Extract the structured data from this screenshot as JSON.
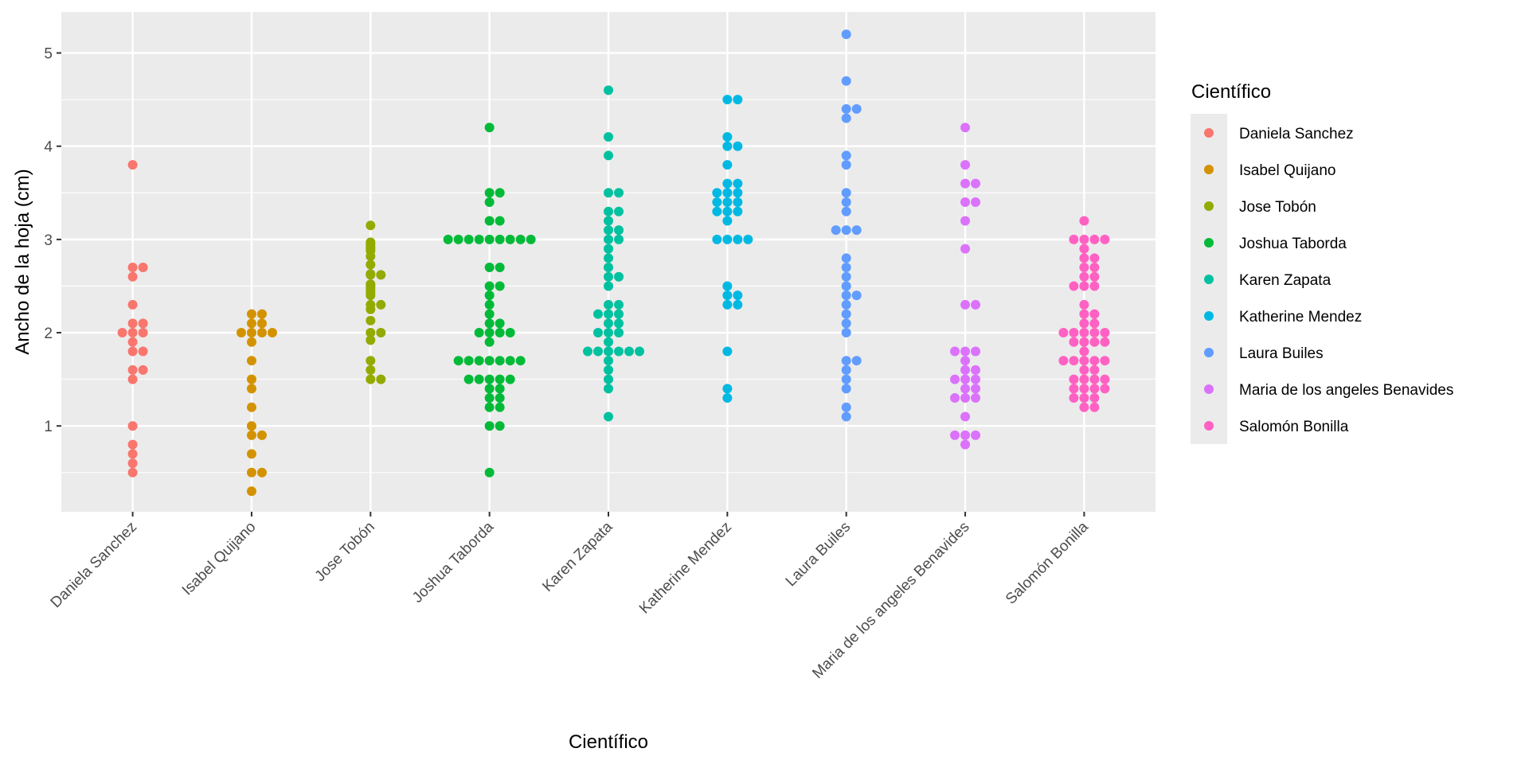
{
  "chart_data": {
    "type": "scatter",
    "subtype": "dotplot",
    "title": "",
    "xlabel": "Científico",
    "ylabel": "Ancho de la hoja (cm)",
    "ylim": [
      0.08,
      5.44
    ],
    "yticks": [
      1,
      2,
      3,
      4,
      5
    ],
    "grid": true,
    "legend_position": "right",
    "legend_title": "Científico",
    "categories": [
      "Daniela Sanchez",
      "Isabel Quijano",
      "Jose Tobón",
      "Joshua Taborda",
      "Karen Zapata",
      "Katherine Mendez",
      "Laura Builes",
      "Maria de los angeles Benavides",
      "Salomón  Bonilla"
    ],
    "series": [
      {
        "name": "Daniela Sanchez",
        "color": "#F8766D",
        "values": [
          3.8,
          2.7,
          2.7,
          2.6,
          2.3,
          2.1,
          2.1,
          2.0,
          2.0,
          2.0,
          1.9,
          1.8,
          1.8,
          1.6,
          1.6,
          1.5,
          1.0,
          0.8,
          0.7,
          0.6,
          0.5
        ]
      },
      {
        "name": "Isabel Quijano",
        "color": "#D39200",
        "values": [
          2.2,
          2.2,
          2.1,
          2.1,
          2.0,
          2.0,
          2.0,
          2.0,
          1.9,
          1.7,
          1.5,
          1.4,
          1.2,
          1.0,
          0.9,
          0.9,
          0.7,
          0.5,
          0.5,
          0.3
        ]
      },
      {
        "name": "Jose Tobón",
        "color": "#93AA00",
        "values": [
          3.15,
          2.97,
          2.95,
          2.92,
          2.9,
          2.88,
          2.82,
          2.73,
          2.63,
          2.62,
          2.62,
          2.52,
          2.5,
          2.48,
          2.45,
          2.43,
          2.4,
          2.3,
          2.3,
          2.25,
          2.13,
          2.0,
          2.0,
          1.92,
          1.7,
          1.6,
          1.5,
          1.5
        ]
      },
      {
        "name": "Joshua Taborda",
        "color": "#00BA38",
        "values": [
          4.2,
          3.5,
          3.5,
          3.4,
          3.2,
          3.2,
          3.0,
          3.0,
          3.0,
          3.0,
          3.0,
          3.0,
          3.0,
          3.0,
          3.0,
          2.7,
          2.7,
          2.5,
          2.5,
          2.4,
          2.3,
          2.2,
          2.1,
          2.1,
          2.0,
          2.0,
          2.0,
          2.0,
          1.9,
          1.7,
          1.7,
          1.7,
          1.7,
          1.7,
          1.7,
          1.7,
          1.5,
          1.5,
          1.5,
          1.5,
          1.5,
          1.4,
          1.4,
          1.3,
          1.3,
          1.2,
          1.2,
          1.0,
          1.0,
          0.5
        ]
      },
      {
        "name": "Karen Zapata",
        "color": "#00C19F",
        "values": [
          4.6,
          4.1,
          3.9,
          3.5,
          3.5,
          3.3,
          3.3,
          3.2,
          3.1,
          3.1,
          3.0,
          3.0,
          2.9,
          2.8,
          2.7,
          2.6,
          2.6,
          2.5,
          2.3,
          2.3,
          2.2,
          2.2,
          2.2,
          2.1,
          2.1,
          2.0,
          2.0,
          2.0,
          1.9,
          1.8,
          1.8,
          1.8,
          1.8,
          1.8,
          1.8,
          1.7,
          1.6,
          1.5,
          1.4,
          1.1
        ]
      },
      {
        "name": "Katherine Mendez",
        "color": "#00B9E3",
        "values": [
          4.5,
          4.5,
          4.1,
          4.0,
          4.0,
          3.8,
          3.6,
          3.6,
          3.5,
          3.5,
          3.5,
          3.4,
          3.4,
          3.4,
          3.3,
          3.3,
          3.3,
          3.2,
          3.0,
          3.0,
          3.0,
          3.0,
          2.5,
          2.4,
          2.4,
          2.3,
          2.3,
          1.8,
          1.4,
          1.3
        ]
      },
      {
        "name": "Laura Builes",
        "color": "#619CFF",
        "values": [
          5.2,
          4.7,
          4.4,
          4.4,
          4.3,
          3.9,
          3.8,
          3.5,
          3.4,
          3.3,
          3.1,
          3.1,
          3.1,
          2.8,
          2.7,
          2.6,
          2.5,
          2.4,
          2.4,
          2.3,
          2.2,
          2.1,
          2.0,
          1.7,
          1.7,
          1.6,
          1.5,
          1.4,
          1.2,
          1.1
        ]
      },
      {
        "name": "Maria de los angeles Benavides",
        "color": "#DB72FB",
        "values": [
          4.2,
          3.8,
          3.6,
          3.6,
          3.4,
          3.4,
          3.2,
          2.9,
          2.3,
          2.3,
          1.8,
          1.8,
          1.8,
          1.7,
          1.6,
          1.6,
          1.5,
          1.5,
          1.5,
          1.4,
          1.4,
          1.3,
          1.3,
          1.3,
          1.1,
          0.9,
          0.9,
          0.9,
          0.8
        ]
      },
      {
        "name": "Salomón  Bonilla",
        "color": "#FF61C3",
        "values": [
          3.2,
          3.0,
          3.0,
          3.0,
          3.0,
          2.9,
          2.8,
          2.8,
          2.7,
          2.7,
          2.6,
          2.6,
          2.5,
          2.5,
          2.5,
          2.3,
          2.2,
          2.2,
          2.1,
          2.1,
          2.0,
          2.0,
          2.0,
          2.0,
          2.0,
          1.9,
          1.9,
          1.9,
          1.9,
          1.8,
          1.7,
          1.7,
          1.7,
          1.7,
          1.7,
          1.6,
          1.6,
          1.5,
          1.5,
          1.5,
          1.5,
          1.4,
          1.4,
          1.4,
          1.4,
          1.3,
          1.3,
          1.3,
          1.2,
          1.2
        ]
      }
    ]
  },
  "colors": {
    "panel_background": "#EBEBEB",
    "grid": "#FFFFFF",
    "tick_text": "#4D4D4D"
  }
}
